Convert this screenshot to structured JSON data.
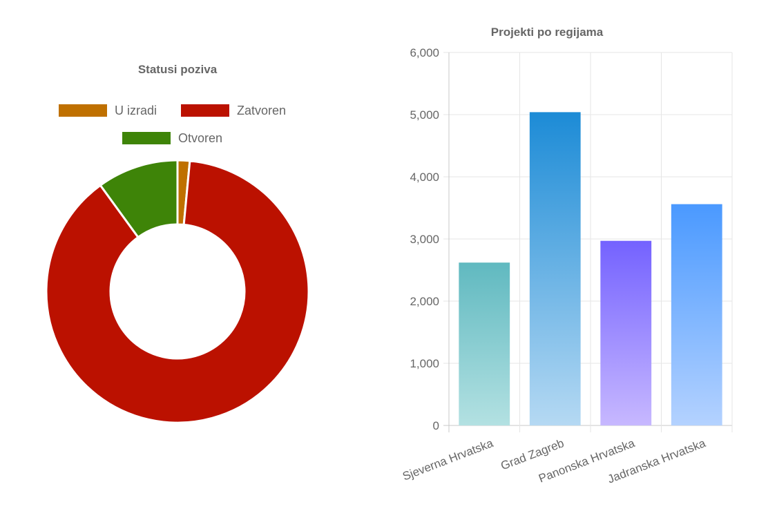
{
  "chart_data": [
    {
      "type": "pie",
      "variant": "doughnut",
      "title": "Statusi poziva",
      "legend_position": "top",
      "labels": [
        "U izradi",
        "Zatvoren",
        "Otvoren"
      ],
      "values": [
        1.5,
        88.5,
        10
      ],
      "colors": [
        "#BF7000",
        "#BB1100",
        "#3E8408"
      ]
    },
    {
      "type": "bar",
      "title": "Projekti po regijama",
      "categories": [
        "Sjeverna Hrvatska",
        "Grad Zagreb",
        "Panonska Hrvatska",
        "Jadranska Hrvatska"
      ],
      "values": [
        2620,
        5040,
        2970,
        3560
      ],
      "ylim": [
        0,
        6000
      ],
      "yticks": [
        0,
        1000,
        2000,
        3000,
        4000,
        5000,
        6000
      ],
      "ytick_labels": [
        "0",
        "1,000",
        "2,000",
        "3,000",
        "4,000",
        "5,000",
        "6,000"
      ],
      "grid": true,
      "colors": [
        [
          "#60B9C0",
          "#B3E1E2"
        ],
        [
          "#1C8BD6",
          "#B5D9F3"
        ],
        [
          "#7462FF",
          "#C7B8FF"
        ],
        [
          "#4A99FF",
          "#B4D2FF"
        ]
      ]
    }
  ]
}
